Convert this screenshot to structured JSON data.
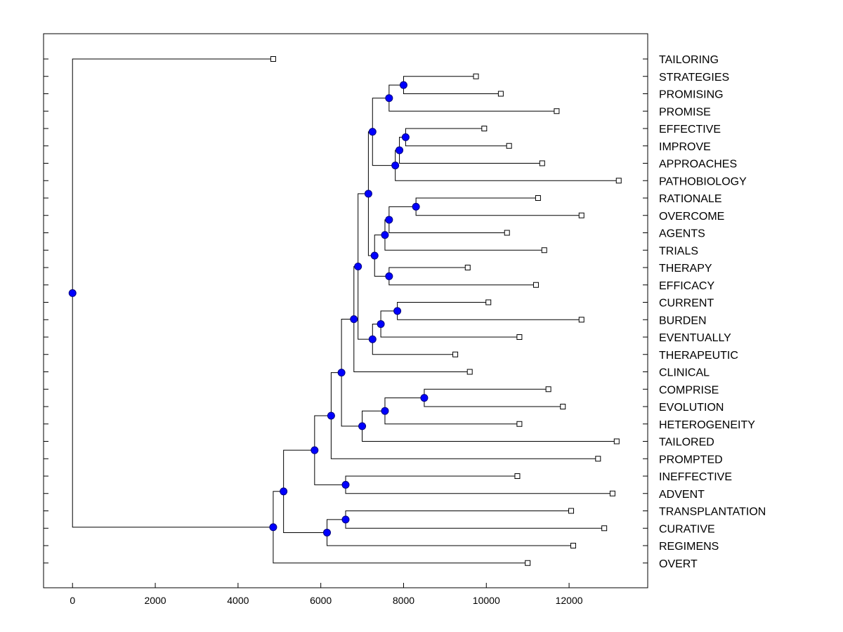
{
  "chart_data": {
    "type": "dendrogram",
    "orientation": "left-to-right",
    "title": "",
    "xlabel": "",
    "ylabel": "",
    "xlim": [
      -700,
      13900
    ],
    "x_ticks": [
      0,
      2000,
      4000,
      6000,
      8000,
      10000,
      12000
    ],
    "x_tick_labels": [
      "0",
      "2000",
      "4000",
      "6000",
      "8000",
      "10000",
      "12000"
    ],
    "leaf_order": [
      "TAILORING",
      "STRATEGIES",
      "PROMISING",
      "PROMISE",
      "EFFECTIVE",
      "IMPROVE",
      "APPROACHES",
      "PATHOBIOLOGY",
      "RATIONALE",
      "OVERCOME",
      "AGENTS",
      "TRIALS",
      "THERAPY",
      "EFFICACY",
      "CURRENT",
      "BURDEN",
      "EVENTUALLY",
      "THERAPEUTIC",
      "CLINICAL",
      "COMPRISE",
      "EVOLUTION",
      "HETEROGENEITY",
      "TAILORED",
      "PROMPTED",
      "INEFFECTIVE",
      "ADVENT",
      "TRANSPLANTATION",
      "CURATIVE",
      "REGIMENS",
      "OVERT"
    ],
    "leaves": [
      {
        "id": "L0",
        "label": "TAILORING",
        "x": 4850
      },
      {
        "id": "L1",
        "label": "STRATEGIES",
        "x": 9750
      },
      {
        "id": "L2",
        "label": "PROMISING",
        "x": 10350
      },
      {
        "id": "L3",
        "label": "PROMISE",
        "x": 11700
      },
      {
        "id": "L4",
        "label": "EFFECTIVE",
        "x": 9950
      },
      {
        "id": "L5",
        "label": "IMPROVE",
        "x": 10550
      },
      {
        "id": "L6",
        "label": "APPROACHES",
        "x": 11350
      },
      {
        "id": "L7",
        "label": "PATHOBIOLOGY",
        "x": 13200
      },
      {
        "id": "L8",
        "label": "RATIONALE",
        "x": 11250
      },
      {
        "id": "L9",
        "label": "OVERCOME",
        "x": 12300
      },
      {
        "id": "L10",
        "label": "AGENTS",
        "x": 10500
      },
      {
        "id": "L11",
        "label": "TRIALS",
        "x": 11400
      },
      {
        "id": "L12",
        "label": "THERAPY",
        "x": 9550
      },
      {
        "id": "L13",
        "label": "EFFICACY",
        "x": 11200
      },
      {
        "id": "L14",
        "label": "CURRENT",
        "x": 10050
      },
      {
        "id": "L15",
        "label": "BURDEN",
        "x": 12300
      },
      {
        "id": "L16",
        "label": "EVENTUALLY",
        "x": 10800
      },
      {
        "id": "L17",
        "label": "THERAPEUTIC",
        "x": 9250
      },
      {
        "id": "L18",
        "label": "CLINICAL",
        "x": 9600
      },
      {
        "id": "L19",
        "label": "COMPRISE",
        "x": 11500
      },
      {
        "id": "L20",
        "label": "EVOLUTION",
        "x": 11850
      },
      {
        "id": "L21",
        "label": "HETEROGENEITY",
        "x": 10800
      },
      {
        "id": "L22",
        "label": "TAILORED",
        "x": 13150
      },
      {
        "id": "L23",
        "label": "PROMPTED",
        "x": 12700
      },
      {
        "id": "L24",
        "label": "INEFFECTIVE",
        "x": 10750
      },
      {
        "id": "L25",
        "label": "ADVENT",
        "x": 13050
      },
      {
        "id": "L26",
        "label": "TRANSPLANTATION",
        "x": 12050
      },
      {
        "id": "L27",
        "label": "CURATIVE",
        "x": 12850
      },
      {
        "id": "L28",
        "label": "REGIMENS",
        "x": 12100
      },
      {
        "id": "L29",
        "label": "OVERT",
        "x": 11000
      }
    ],
    "merges": [
      {
        "id": "N1",
        "x": 8000,
        "children": [
          "L1",
          "L2"
        ]
      },
      {
        "id": "N2",
        "x": 7650,
        "children": [
          "N1",
          "L3"
        ]
      },
      {
        "id": "N3",
        "x": 8050,
        "children": [
          "L4",
          "L5"
        ]
      },
      {
        "id": "N4",
        "x": 7900,
        "children": [
          "N3",
          "L6"
        ]
      },
      {
        "id": "N5",
        "x": 7800,
        "children": [
          "N4",
          "L7"
        ]
      },
      {
        "id": "N6",
        "x": 7250,
        "children": [
          "N2",
          "N5"
        ]
      },
      {
        "id": "N7",
        "x": 8300,
        "children": [
          "L8",
          "L9"
        ]
      },
      {
        "id": "N8",
        "x": 7650,
        "children": [
          "N7",
          "L10"
        ]
      },
      {
        "id": "N9",
        "x": 7550,
        "children": [
          "N8",
          "L11"
        ]
      },
      {
        "id": "N10",
        "x": 7650,
        "children": [
          "L12",
          "L13"
        ]
      },
      {
        "id": "N11",
        "x": 7300,
        "children": [
          "N9",
          "N10"
        ]
      },
      {
        "id": "N12",
        "x": 7150,
        "children": [
          "N6",
          "N11"
        ]
      },
      {
        "id": "N13",
        "x": 7850,
        "children": [
          "L14",
          "L15"
        ]
      },
      {
        "id": "N14",
        "x": 7450,
        "children": [
          "N13",
          "L16"
        ]
      },
      {
        "id": "N15",
        "x": 7250,
        "children": [
          "N14",
          "L17"
        ]
      },
      {
        "id": "N16",
        "x": 6900,
        "children": [
          "N12",
          "N15"
        ]
      },
      {
        "id": "N17",
        "x": 6800,
        "children": [
          "N16",
          "L18"
        ]
      },
      {
        "id": "N18",
        "x": 8500,
        "children": [
          "L19",
          "L20"
        ]
      },
      {
        "id": "N19",
        "x": 7550,
        "children": [
          "N18",
          "L21"
        ]
      },
      {
        "id": "N20",
        "x": 7000,
        "children": [
          "N19",
          "L22"
        ]
      },
      {
        "id": "N21",
        "x": 6500,
        "children": [
          "N17",
          "N20"
        ]
      },
      {
        "id": "N22",
        "x": 6250,
        "children": [
          "N21",
          "L23"
        ]
      },
      {
        "id": "N23",
        "x": 6600,
        "children": [
          "L24",
          "L25"
        ]
      },
      {
        "id": "N24",
        "x": 5850,
        "children": [
          "N22",
          "N23"
        ]
      },
      {
        "id": "N25",
        "x": 6600,
        "children": [
          "L26",
          "L27"
        ]
      },
      {
        "id": "N26",
        "x": 6150,
        "children": [
          "N25",
          "L28"
        ]
      },
      {
        "id": "N27",
        "x": 5100,
        "children": [
          "N24",
          "N26"
        ]
      },
      {
        "id": "N28",
        "x": 4850,
        "children": [
          "N27",
          "L29"
        ]
      },
      {
        "id": "ROOT",
        "x": 0,
        "children": [
          "L0",
          "N28"
        ]
      }
    ],
    "legend": "none",
    "grid": false
  },
  "colors": {
    "background": "#ffffff",
    "axes": "#000000",
    "link": "#000000",
    "node_fill": "#0000ff",
    "node_stroke": "#000080",
    "leaf_marker_fill": "#ffffff",
    "leaf_marker_stroke": "#000000"
  }
}
